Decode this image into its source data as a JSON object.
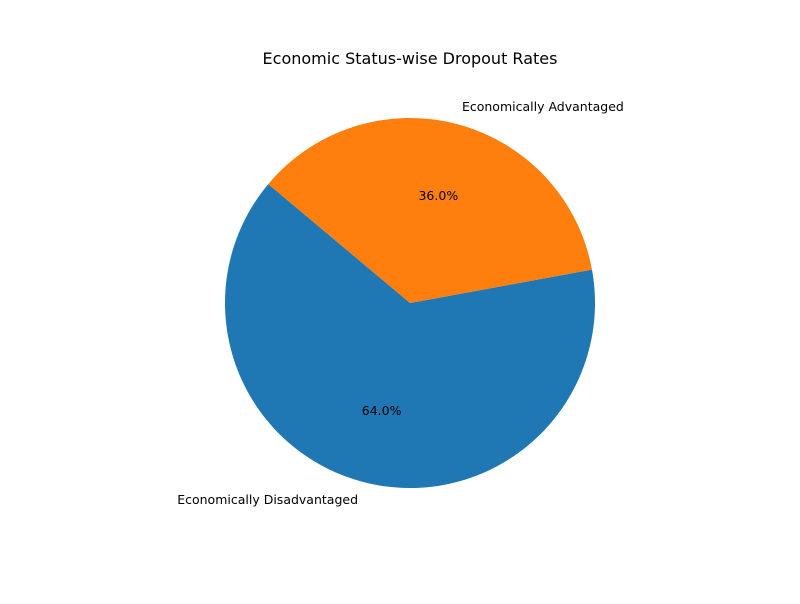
{
  "chart_data": {
    "type": "pie",
    "title": "Economic Status-wise Dropout Rates",
    "categories": [
      "Economically Disadvantaged",
      "Economically Advantaged"
    ],
    "values": [
      64.0,
      36.0
    ],
    "value_labels": [
      "64.0%",
      "36.0%"
    ],
    "colors": [
      "#1f77b4",
      "#ff7f0e"
    ],
    "start_angle_deg": 140,
    "direction": "counterclockwise",
    "legend": "none"
  }
}
